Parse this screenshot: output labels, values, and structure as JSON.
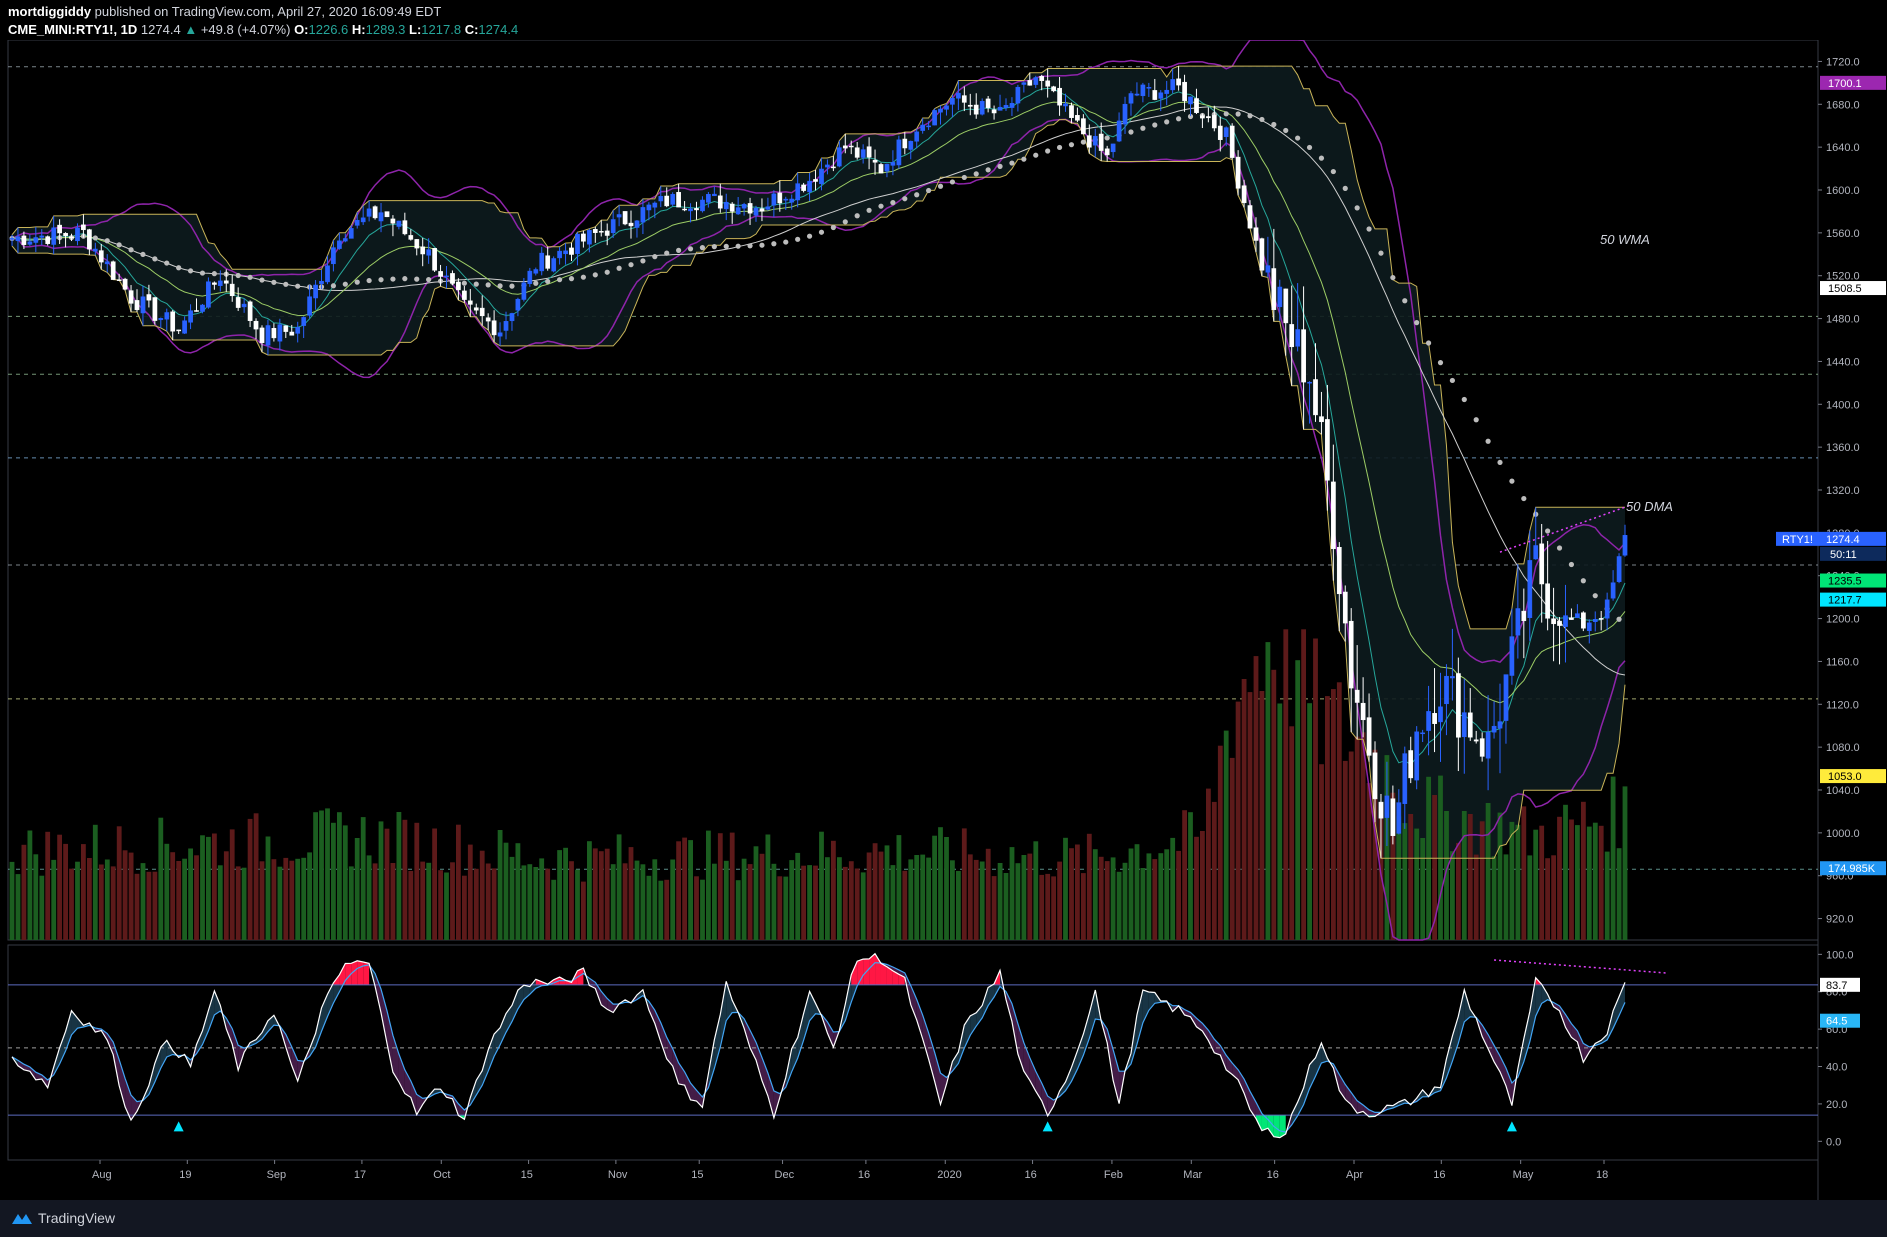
{
  "header": {
    "author": "mortdiggiddy",
    "published": "published on TradingView.com, April 27, 2020 16:09:49 EDT",
    "symbol": "CME_MINI:RTY1!, 1D",
    "last": "1274.4",
    "change": "+49.8 (+4.07%)",
    "open_label": "O:",
    "open": "1226.6",
    "high_label": "H:",
    "high": "1289.3",
    "low_label": "L:",
    "low": "1217.8",
    "close_label": "C:",
    "close": "1274.4"
  },
  "footer": {
    "brand": "TradingView",
    "logo_icon": "tradingview-logo-icon"
  },
  "colors": {
    "up": "#2962ff",
    "down": "#ffffff",
    "vol_up": "#1b5e20",
    "vol_down": "#5d1a1a",
    "bb": "#8e24aa",
    "donchian": "#c9b458",
    "sma50": "#cfcfcf",
    "wma50": "#bdbdbd",
    "ema_fast": "#26a69a",
    "ema_slow": "#9ccc65",
    "red_line": "#e53935",
    "osc_fast": "#ffffff",
    "osc_slow": "#42a5f5",
    "osc_ob": "#ff1744",
    "osc_os": "#00e676"
  },
  "chart_data": {
    "type": "candlestick",
    "title": "CME_MINI:RTY1!, 1D",
    "xlabel": "",
    "ylabel": "",
    "ylim": [
      900,
      1740
    ],
    "y_ticks": [
      920,
      960,
      1000,
      1040,
      1080,
      1120,
      1160,
      1200,
      1240,
      1280,
      1320,
      1360,
      1400,
      1440,
      1480,
      1520,
      1560,
      1600,
      1640,
      1680,
      1720
    ],
    "x_labels": [
      "Aug",
      "19",
      "Sep",
      "17",
      "Oct",
      "15",
      "Nov",
      "15",
      "Dec",
      "16",
      "2020",
      "16",
      "Feb",
      "Mar",
      "16",
      "Apr",
      "16",
      "May",
      "18"
    ],
    "horizontal_levels": [
      1715,
      1482,
      1428,
      1350,
      1250,
      1125,
      966
    ],
    "annotations": [
      {
        "text": "50 WMA"
      },
      {
        "text": "50 DMA"
      }
    ],
    "last_price": {
      "label": "RTY1!",
      "value": "1274.4",
      "countdown": "50:11"
    },
    "price_tags": [
      {
        "value": "1700.1",
        "color": "#9c27b0"
      },
      {
        "value": "1508.5",
        "color": "#ffffff"
      },
      {
        "value": "1235.5",
        "color": "#00e676"
      },
      {
        "value": "1217.7",
        "color": "#00e5ff"
      },
      {
        "value": "1053.0",
        "color": "#ffeb3b"
      },
      {
        "value": "174.985K",
        "color": "#2196f3"
      }
    ],
    "series": [
      {
        "name": "Close",
        "key_points": [
          [
            0,
            1555
          ],
          [
            12,
            1560
          ],
          [
            20,
            1500
          ],
          [
            28,
            1470
          ],
          [
            35,
            1520
          ],
          [
            42,
            1465
          ],
          [
            48,
            1470
          ],
          [
            55,
            1560
          ],
          [
            62,
            1580
          ],
          [
            70,
            1540
          ],
          [
            76,
            1490
          ],
          [
            82,
            1470
          ],
          [
            88,
            1530
          ],
          [
            95,
            1550
          ],
          [
            102,
            1570
          ],
          [
            110,
            1590
          ],
          [
            118,
            1590
          ],
          [
            126,
            1585
          ],
          [
            134,
            1610
          ],
          [
            140,
            1640
          ],
          [
            146,
            1620
          ],
          [
            152,
            1660
          ],
          [
            158,
            1685
          ],
          [
            166,
            1670
          ],
          [
            172,
            1705
          ],
          [
            178,
            1665
          ],
          [
            184,
            1630
          ],
          [
            188,
            1690
          ],
          [
            196,
            1695
          ],
          [
            204,
            1650
          ],
          [
            210,
            1530
          ],
          [
            214,
            1470
          ],
          [
            218,
            1430
          ],
          [
            222,
            1290
          ],
          [
            225,
            1150
          ],
          [
            229,
            1060
          ],
          [
            232,
            1000
          ],
          [
            236,
            1100
          ],
          [
            240,
            1140
          ],
          [
            244,
            1110
          ],
          [
            248,
            1080
          ],
          [
            252,
            1160
          ],
          [
            256,
            1250
          ],
          [
            260,
            1200
          ],
          [
            264,
            1195
          ],
          [
            268,
            1210
          ],
          [
            271,
            1274
          ]
        ]
      },
      {
        "name": "Volume",
        "ylim_k": [
          0,
          420
        ],
        "last": 175
      }
    ],
    "oscillator": {
      "ylim": [
        -10,
        105
      ],
      "y_ticks": [
        0.0,
        20.0,
        40.0,
        60.0,
        80.0,
        100.0
      ],
      "levels": [
        83.7,
        50,
        14
      ],
      "price_tags": [
        {
          "value": "83.7",
          "color": "#ffffff"
        },
        {
          "value": "64.5",
          "color": "#29b6f6"
        }
      ],
      "fast_key_points": [
        [
          0,
          45
        ],
        [
          6,
          30
        ],
        [
          10,
          70
        ],
        [
          16,
          55
        ],
        [
          20,
          10
        ],
        [
          26,
          55
        ],
        [
          30,
          40
        ],
        [
          34,
          80
        ],
        [
          38,
          40
        ],
        [
          44,
          70
        ],
        [
          48,
          30
        ],
        [
          52,
          70
        ],
        [
          56,
          95
        ],
        [
          60,
          95
        ],
        [
          64,
          40
        ],
        [
          68,
          15
        ],
        [
          72,
          30
        ],
        [
          76,
          12
        ],
        [
          80,
          50
        ],
        [
          86,
          85
        ],
        [
          92,
          85
        ],
        [
          96,
          90
        ],
        [
          100,
          70
        ],
        [
          106,
          80
        ],
        [
          112,
          30
        ],
        [
          116,
          20
        ],
        [
          120,
          85
        ],
        [
          124,
          50
        ],
        [
          128,
          15
        ],
        [
          134,
          80
        ],
        [
          138,
          50
        ],
        [
          142,
          98
        ],
        [
          146,
          98
        ],
        [
          150,
          85
        ],
        [
          156,
          20
        ],
        [
          160,
          60
        ],
        [
          166,
          90
        ],
        [
          170,
          35
        ],
        [
          174,
          15
        ],
        [
          178,
          40
        ],
        [
          182,
          80
        ],
        [
          186,
          20
        ],
        [
          190,
          80
        ],
        [
          196,
          70
        ],
        [
          200,
          60
        ],
        [
          206,
          30
        ],
        [
          210,
          5
        ],
        [
          214,
          5
        ],
        [
          220,
          55
        ],
        [
          224,
          20
        ],
        [
          228,
          15
        ],
        [
          234,
          20
        ],
        [
          240,
          30
        ],
        [
          244,
          80
        ],
        [
          248,
          50
        ],
        [
          252,
          20
        ],
        [
          256,
          85
        ],
        [
          260,
          70
        ],
        [
          264,
          45
        ],
        [
          268,
          60
        ],
        [
          271,
          84
        ]
      ],
      "markers": [
        {
          "x": 28
        },
        {
          "x": 174
        },
        {
          "x": 252
        }
      ]
    }
  }
}
